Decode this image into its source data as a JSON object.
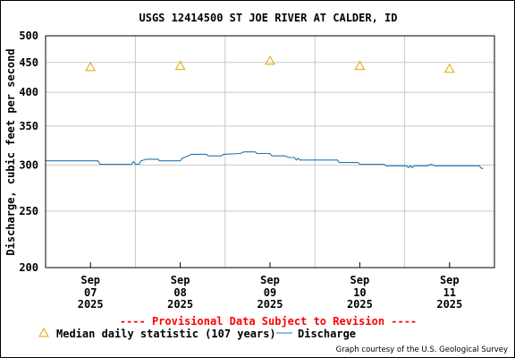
{
  "chart_data": {
    "type": "line",
    "title": "USGS 12414500 ST JOE RIVER AT CALDER, ID",
    "ylabel": "Discharge, cubic feet per second",
    "xlabel": "",
    "y_scale": "log",
    "ylim": [
      200,
      500
    ],
    "y_ticks": [
      200,
      250,
      300,
      350,
      400,
      450,
      500
    ],
    "xlim": [
      "2025-09-06 12:00",
      "2025-09-11 12:00"
    ],
    "x_ticks": [
      {
        "at": "2025-09-07",
        "month": "Sep",
        "day": "07",
        "year": "2025"
      },
      {
        "at": "2025-09-08",
        "month": "Sep",
        "day": "08",
        "year": "2025"
      },
      {
        "at": "2025-09-09",
        "month": "Sep",
        "day": "09",
        "year": "2025"
      },
      {
        "at": "2025-09-10",
        "month": "Sep",
        "day": "10",
        "year": "2025"
      },
      {
        "at": "2025-09-11",
        "month": "Sep",
        "day": "11",
        "year": "2025"
      }
    ],
    "grid": true,
    "series": [
      {
        "name": "Discharge",
        "kind": "line",
        "color": "#1f77b4",
        "points": [
          [
            "2025-09-06 12:00",
            305
          ],
          [
            "2025-09-07 02:00",
            305
          ],
          [
            "2025-09-07 02:30",
            301
          ],
          [
            "2025-09-07 11:00",
            301
          ],
          [
            "2025-09-07 11:30",
            304
          ],
          [
            "2025-09-07 12:00",
            301
          ],
          [
            "2025-09-07 13:00",
            301
          ],
          [
            "2025-09-07 13:30",
            305
          ],
          [
            "2025-09-07 15:00",
            307
          ],
          [
            "2025-09-07 18:00",
            307
          ],
          [
            "2025-09-07 18:30",
            305
          ],
          [
            "2025-09-08 00:00",
            305
          ],
          [
            "2025-09-08 00:30",
            308
          ],
          [
            "2025-09-08 02:00",
            311
          ],
          [
            "2025-09-08 03:00",
            313
          ],
          [
            "2025-09-08 07:00",
            313
          ],
          [
            "2025-09-08 07:30",
            311
          ],
          [
            "2025-09-08 11:00",
            311
          ],
          [
            "2025-09-08 11:30",
            313
          ],
          [
            "2025-09-08 16:00",
            314
          ],
          [
            "2025-09-08 17:00",
            316
          ],
          [
            "2025-09-08 20:00",
            316
          ],
          [
            "2025-09-08 20:30",
            314
          ],
          [
            "2025-09-09 00:00",
            314
          ],
          [
            "2025-09-09 00:30",
            311
          ],
          [
            "2025-09-09 04:00",
            311
          ],
          [
            "2025-09-09 05:00",
            309
          ],
          [
            "2025-09-09 06:30",
            309
          ],
          [
            "2025-09-09 07:00",
            306
          ],
          [
            "2025-09-09 07:30",
            308
          ],
          [
            "2025-09-09 08:00",
            306
          ],
          [
            "2025-09-09 18:00",
            306
          ],
          [
            "2025-09-09 18:30",
            303
          ],
          [
            "2025-09-09 23:30",
            303
          ],
          [
            "2025-09-10 00:00",
            301
          ],
          [
            "2025-09-10 06:30",
            301
          ],
          [
            "2025-09-10 07:00",
            299
          ],
          [
            "2025-09-10 12:30",
            299
          ],
          [
            "2025-09-10 13:00",
            297
          ],
          [
            "2025-09-10 13:30",
            299
          ],
          [
            "2025-09-10 14:00",
            297
          ],
          [
            "2025-09-10 14:30",
            299
          ],
          [
            "2025-09-10 18:00",
            299
          ],
          [
            "2025-09-10 19:00",
            301
          ],
          [
            "2025-09-10 20:00",
            299
          ],
          [
            "2025-09-11 08:00",
            299
          ],
          [
            "2025-09-11 08:30",
            296
          ],
          [
            "2025-09-11 09:00",
            296
          ]
        ]
      },
      {
        "name": "Median daily statistic (107 years)",
        "kind": "marker",
        "color": "#e6a100",
        "marker": "triangle-open",
        "points": [
          [
            "2025-09-07",
            442
          ],
          [
            "2025-09-08",
            444
          ],
          [
            "2025-09-09",
            453
          ],
          [
            "2025-09-10",
            444
          ],
          [
            "2025-09-11",
            439
          ]
        ]
      }
    ]
  },
  "footer": {
    "provisional": "---- Provisional Data Subject to Revision ----",
    "credit": "Graph courtesy of the U.S. Geological Survey"
  },
  "colors": {
    "provisional": "#ff0000",
    "grid": "#c8c8c8",
    "axis": "#000000"
  }
}
